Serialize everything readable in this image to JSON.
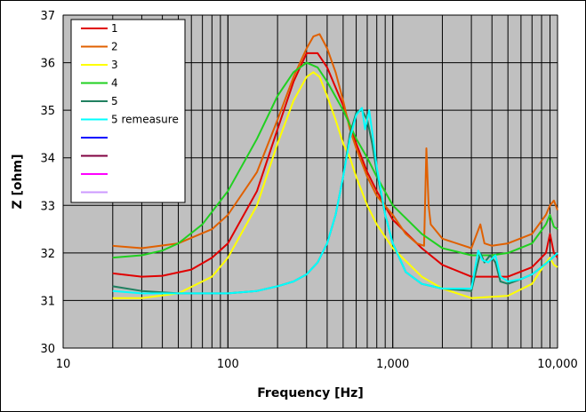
{
  "chart_data": {
    "type": "line",
    "title": "",
    "xlabel": "Frequency [Hz]",
    "ylabel": "Z [ohm]",
    "x_scale": "log",
    "xlim": [
      10,
      10000
    ],
    "ylim": [
      30,
      37
    ],
    "x_ticks": [
      10,
      100,
      1000,
      10000
    ],
    "x_tick_labels": [
      "10",
      "100",
      "1,000",
      "10,000"
    ],
    "y_ticks": [
      30,
      31,
      32,
      33,
      34,
      35,
      36,
      37
    ],
    "y_tick_labels": [
      "30",
      "31",
      "32",
      "33",
      "34",
      "35",
      "36",
      "37"
    ],
    "grid": true,
    "legend_position": "top-left",
    "plot_background": "#c0c0c0",
    "series": [
      {
        "name": "1",
        "color": "#e00000",
        "x": [
          20,
          30,
          40,
          60,
          80,
          100,
          150,
          200,
          250,
          300,
          350,
          400,
          500,
          600,
          700,
          800,
          1000,
          1500,
          2000,
          3000,
          5000,
          7000,
          8500,
          9000,
          9500,
          10000
        ],
        "y": [
          31.57,
          31.5,
          31.52,
          31.65,
          31.9,
          32.2,
          33.3,
          34.6,
          35.6,
          36.2,
          36.2,
          35.9,
          35.1,
          34.3,
          33.7,
          33.3,
          32.7,
          32.1,
          31.75,
          31.5,
          31.5,
          31.7,
          32.0,
          32.4,
          32.0,
          31.9
        ]
      },
      {
        "name": "2",
        "color": "#e06000",
        "x": [
          20,
          30,
          50,
          80,
          100,
          150,
          200,
          250,
          300,
          330,
          360,
          400,
          450,
          500,
          550,
          600,
          700,
          800,
          1000,
          1200,
          1400,
          1550,
          1600,
          1650,
          1700,
          2000,
          3000,
          3400,
          3600,
          4000,
          5000,
          7000,
          8500,
          9000,
          9500,
          10000
        ],
        "y": [
          32.15,
          32.1,
          32.2,
          32.5,
          32.8,
          33.7,
          34.8,
          35.7,
          36.3,
          36.55,
          36.6,
          36.3,
          35.8,
          35.2,
          34.6,
          34.2,
          33.6,
          33.2,
          32.8,
          32.4,
          32.2,
          32.15,
          34.2,
          33.0,
          32.6,
          32.3,
          32.1,
          32.6,
          32.2,
          32.15,
          32.2,
          32.4,
          32.8,
          33.0,
          33.1,
          32.9
        ]
      },
      {
        "name": "3",
        "color": "#ffff00",
        "x": [
          20,
          30,
          50,
          80,
          100,
          150,
          200,
          250,
          300,
          330,
          360,
          400,
          450,
          500,
          550,
          600,
          700,
          800,
          1000,
          1500,
          2000,
          3000,
          5000,
          7000,
          8500,
          9000,
          9500,
          10000
        ],
        "y": [
          31.05,
          31.05,
          31.15,
          31.5,
          31.9,
          33.0,
          34.3,
          35.2,
          35.7,
          35.8,
          35.7,
          35.3,
          34.8,
          34.3,
          34.0,
          33.6,
          33.0,
          32.6,
          32.1,
          31.5,
          31.25,
          31.05,
          31.1,
          31.35,
          31.8,
          31.9,
          31.75,
          31.7
        ]
      },
      {
        "name": "4",
        "color": "#20d020",
        "x": [
          20,
          30,
          40,
          50,
          70,
          100,
          150,
          200,
          250,
          300,
          350,
          400,
          500,
          600,
          700,
          800,
          1000,
          1500,
          2000,
          3000,
          4000,
          5000,
          7000,
          8500,
          9000,
          9500,
          10000
        ],
        "y": [
          31.9,
          31.95,
          32.05,
          32.2,
          32.6,
          33.3,
          34.4,
          35.3,
          35.8,
          36.0,
          35.9,
          35.6,
          35.0,
          34.4,
          34.0,
          33.6,
          33.0,
          32.4,
          32.1,
          31.95,
          31.95,
          32.0,
          32.2,
          32.6,
          32.8,
          32.55,
          32.5
        ]
      },
      {
        "name": "5",
        "color": "#208060",
        "x": [
          20,
          30,
          50,
          80,
          100,
          150,
          200,
          250,
          300,
          350,
          400,
          450,
          500,
          550,
          600,
          650,
          700,
          750,
          800,
          900,
          1000,
          1200,
          1500,
          2000,
          3000,
          3400,
          3600,
          3900,
          4200,
          4500,
          5000,
          6000,
          7000,
          8000,
          9000,
          10000
        ],
        "y": [
          31.3,
          31.2,
          31.15,
          31.15,
          31.15,
          31.2,
          31.3,
          31.4,
          31.55,
          31.8,
          32.2,
          32.8,
          33.6,
          34.5,
          34.95,
          35.0,
          34.8,
          34.3,
          33.7,
          32.8,
          32.2,
          31.6,
          31.35,
          31.25,
          31.2,
          32.0,
          31.8,
          31.95,
          31.8,
          31.4,
          31.35,
          31.45,
          31.55,
          31.7,
          31.85,
          32.0
        ]
      },
      {
        "name": "5 remeasure",
        "color": "#00ffff",
        "x": [
          20,
          30,
          50,
          80,
          100,
          150,
          200,
          250,
          300,
          350,
          400,
          450,
          500,
          550,
          600,
          650,
          680,
          720,
          760,
          800,
          900,
          1000,
          1200,
          1500,
          2000,
          3000,
          3300,
          3500,
          3800,
          4200,
          4500,
          5000,
          6000,
          7000,
          8000,
          9000,
          10000
        ],
        "y": [
          31.2,
          31.15,
          31.15,
          31.15,
          31.15,
          31.2,
          31.3,
          31.4,
          31.55,
          31.8,
          32.2,
          32.8,
          33.6,
          34.4,
          34.9,
          35.05,
          34.6,
          35.0,
          34.4,
          33.8,
          32.8,
          32.2,
          31.6,
          31.35,
          31.25,
          31.25,
          32.05,
          31.85,
          31.8,
          31.95,
          31.5,
          31.4,
          31.45,
          31.55,
          31.7,
          31.85,
          32.0
        ]
      },
      {
        "name": "",
        "color": "#0000ff",
        "x": [],
        "y": []
      },
      {
        "name": "",
        "color": "#800040",
        "x": [],
        "y": []
      },
      {
        "name": "",
        "color": "#ff00ff",
        "x": [],
        "y": []
      },
      {
        "name": "",
        "color": "#cc99ff",
        "x": [],
        "y": []
      }
    ]
  }
}
